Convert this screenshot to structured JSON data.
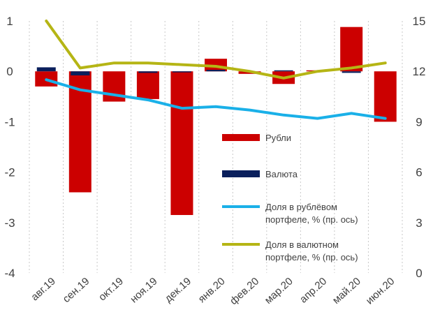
{
  "chart_data": {
    "type": "bar+line",
    "categories": [
      "авг.19",
      "сен.19",
      "окт.19",
      "ноя.19",
      "дек.19",
      "янв.20",
      "фев.20",
      "мар.20",
      "апр.20",
      "май.20",
      "июн.20"
    ],
    "left_axis": {
      "min": -4,
      "max": 1,
      "ticks": [
        1,
        0,
        -1,
        -2,
        -3,
        -4
      ],
      "tick_labels": [
        "1",
        "0",
        "-1",
        "-2",
        "-3",
        "-4"
      ]
    },
    "right_axis": {
      "min": 0,
      "max": 15,
      "ticks": [
        15,
        12,
        9,
        6,
        3,
        0
      ],
      "tick_labels": [
        "15",
        "12",
        "9",
        "6",
        "3",
        "0"
      ]
    },
    "bar_series": [
      {
        "name": "Рубли",
        "color": "#cc0000",
        "values": [
          -0.3,
          -2.4,
          -0.6,
          -0.55,
          -2.85,
          0.25,
          -0.05,
          -0.25,
          0.02,
          0.88,
          -1.0
        ]
      },
      {
        "name": "Валюта",
        "color": "#0a1f5c",
        "values": [
          0.08,
          -0.08,
          0.0,
          -0.03,
          -0.02,
          0.03,
          0.0,
          0.02,
          0.0,
          -0.03,
          0.0
        ]
      }
    ],
    "line_series": [
      {
        "name": "Доля в рублёвом портфеле,  % (пр. ось)",
        "color": "#1ab0e8",
        "axis": "right",
        "values": [
          11.5,
          10.9,
          10.6,
          10.3,
          9.8,
          9.9,
          9.7,
          9.4,
          9.2,
          9.5,
          9.2
        ]
      },
      {
        "name": "Доля в валютном портфеле,  % (пр. ось)",
        "color": "#b5b515",
        "axis": "right",
        "values": [
          15.1,
          12.2,
          12.5,
          12.5,
          12.4,
          12.3,
          12.0,
          11.6,
          12.0,
          12.2,
          12.5
        ]
      }
    ],
    "legend": {
      "position": "inside-lower-right",
      "items": [
        {
          "label_lines": [
            "Рубли"
          ],
          "kind": "bar",
          "color": "#cc0000"
        },
        {
          "label_lines": [
            "Валюта"
          ],
          "kind": "bar",
          "color": "#0a1f5c"
        },
        {
          "label_lines": [
            "Доля в рублёвом",
            "портфеле,  % (пр. ось)"
          ],
          "kind": "line",
          "color": "#1ab0e8"
        },
        {
          "label_lines": [
            "Доля в валютном",
            "портфеле,  % (пр. ось)"
          ],
          "kind": "line",
          "color": "#b5b515"
        }
      ]
    },
    "grid": "vertical-dashed",
    "title": "",
    "xlabel": "",
    "ylabel": ""
  }
}
